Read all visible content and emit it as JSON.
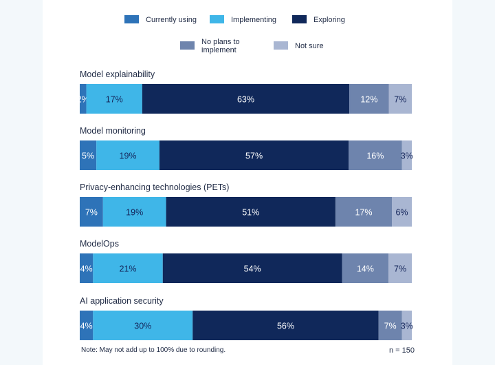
{
  "chart_data": {
    "type": "bar",
    "orientation": "horizontal",
    "stacked": true,
    "categories": [
      "Model explainability",
      "Model monitoring",
      "Privacy-enhancing technologies (PETs)",
      "ModelOps",
      "AI application security"
    ],
    "series": [
      {
        "name": "Currently using",
        "color": "#2e73b8",
        "label_color": "#ffffff",
        "values": [
          2,
          5,
          7,
          4,
          4
        ]
      },
      {
        "name": "Implementing",
        "color": "#3fb6e8",
        "label_color": "#14255a",
        "values": [
          17,
          19,
          19,
          21,
          30
        ]
      },
      {
        "name": "Exploring",
        "color": "#10285a",
        "label_color": "#ffffff",
        "values": [
          63,
          57,
          51,
          54,
          56
        ]
      },
      {
        "name": "No plans to implement",
        "color": "#6e84ad",
        "label_color": "#ffffff",
        "values": [
          12,
          16,
          17,
          14,
          7
        ]
      },
      {
        "name": "Not sure",
        "color": "#a9b6d2",
        "label_color": "#14255a",
        "values": [
          7,
          3,
          6,
          7,
          3
        ]
      }
    ],
    "value_suffix": "%",
    "legend_position": "top",
    "grid": false,
    "note": "Note: May not add up to 100% due to rounding.",
    "n": "n = 150"
  }
}
